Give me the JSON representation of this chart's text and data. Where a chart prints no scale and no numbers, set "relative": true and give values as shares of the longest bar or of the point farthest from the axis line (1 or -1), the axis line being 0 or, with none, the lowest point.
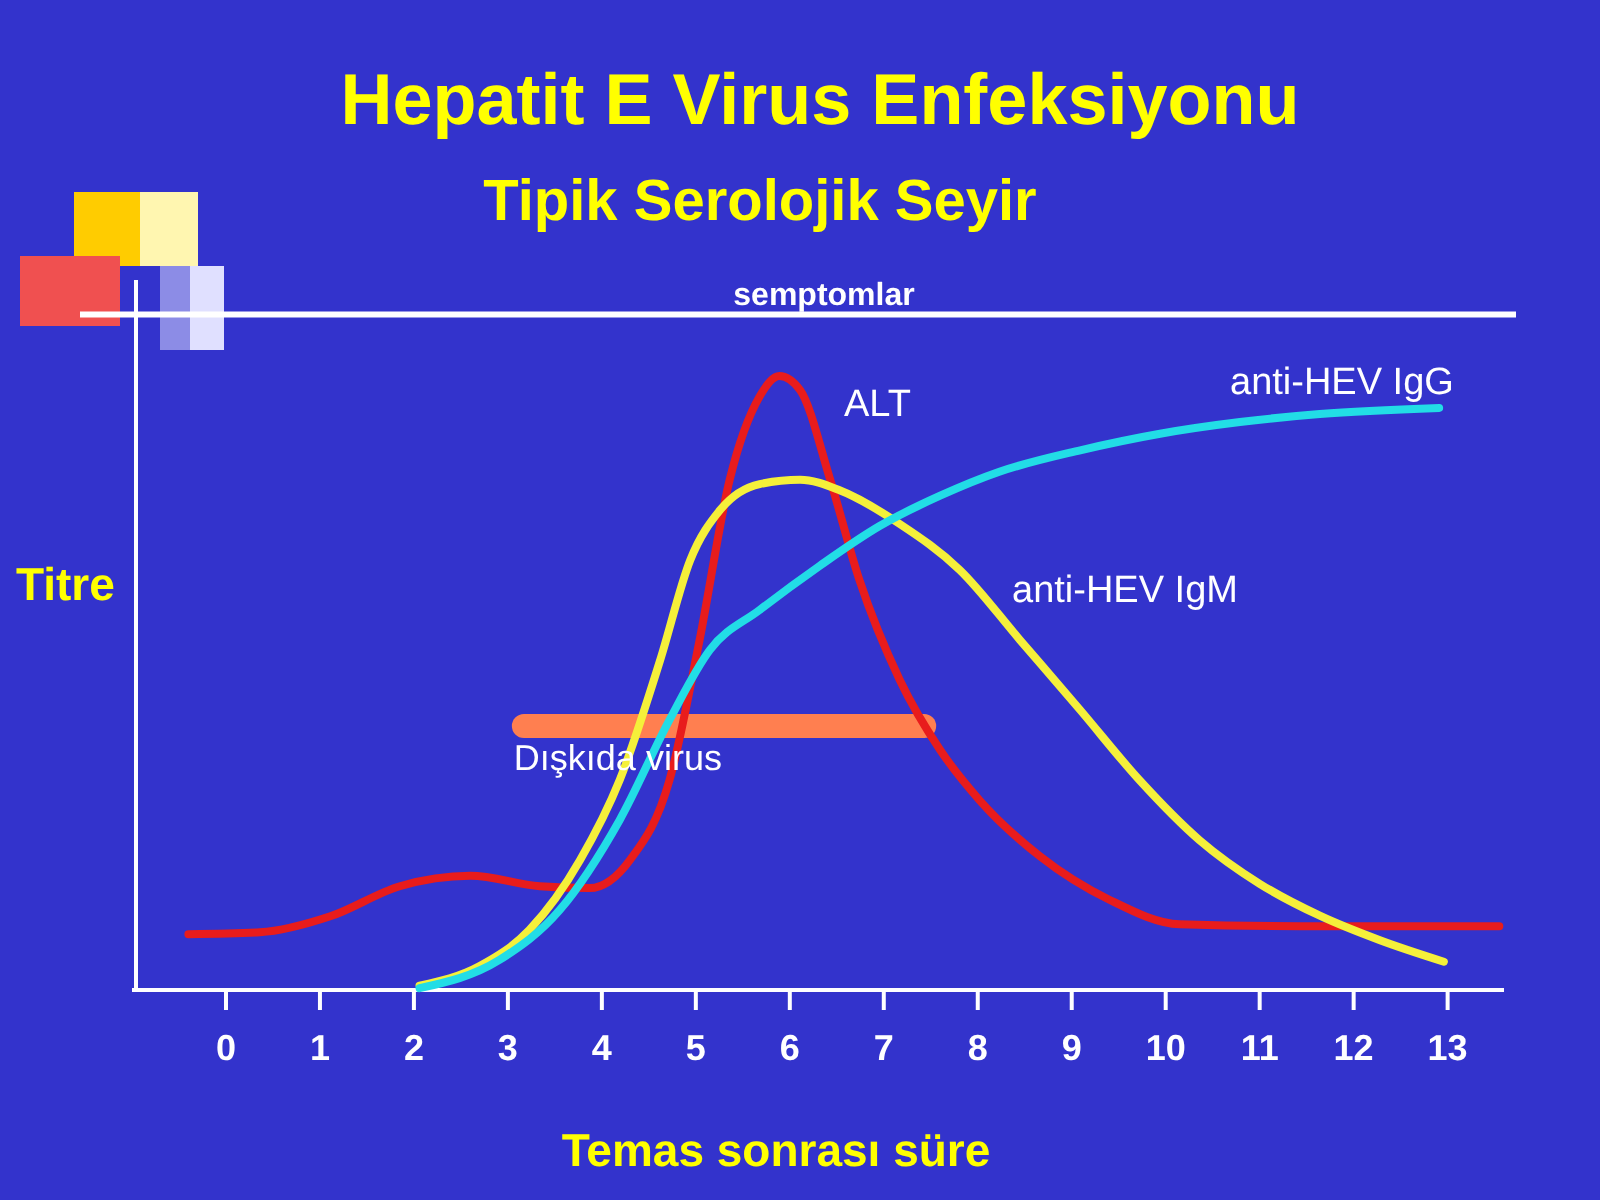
{
  "chart_data": {
    "type": "line",
    "title": "Hepatit E Virus Enfeksiyonu",
    "subtitle": "Tipik Serolojik Seyir",
    "xlabel": "Temas sonrası süre",
    "ylabel": "Titre",
    "relative": true,
    "legend": false,
    "marker": "none",
    "line_style": "solid",
    "annotations": [
      {
        "text": "Dışkıda virus",
        "x": 3.17,
        "y": 0.43
      }
    ],
    "xlim": [
      -1,
      13.6
    ],
    "xticks": [
      0,
      1,
      2,
      3,
      4,
      5,
      6,
      7,
      8,
      9,
      10,
      11,
      12,
      13
    ],
    "ref_lines": [
      {
        "axis": "y",
        "value": 1.1,
        "label": "semptomlar",
        "color": "#ffffff"
      }
    ],
    "series": [
      {
        "color": "#ff7f50",
        "x": [
          3.17,
          7.43
        ],
        "values": [
          0.43,
          0.43
        ]
      },
      {
        "name": "ALT",
        "color": "#e81c1c",
        "x": [
          -0.4,
          0.36,
          1.11,
          1.85,
          2.6,
          3.34,
          3.87,
          4.3,
          4.72,
          5.04,
          5.36,
          5.68,
          5.89,
          6.11,
          6.43,
          6.74,
          7.17,
          7.6,
          8.02,
          8.66,
          9.4,
          10.15,
          11.43,
          13.55
        ],
        "values": [
          0.091,
          0.094,
          0.12,
          0.169,
          0.186,
          0.169,
          0.166,
          0.212,
          0.342,
          0.57,
          0.831,
          0.967,
          1,
          0.977,
          0.831,
          0.668,
          0.505,
          0.391,
          0.309,
          0.218,
          0.147,
          0.107,
          0.104,
          0.104
        ]
      },
      {
        "name": "anti-HEV IgM",
        "color": "#f5f03a",
        "x": [
          2.06,
          2.7,
          3.23,
          3.77,
          4.19,
          4.62,
          4.94,
          5.26,
          5.68,
          6.11,
          6.53,
          7.17,
          7.81,
          8.45,
          9.09,
          9.72,
          10.36,
          11,
          11.64,
          12.28,
          12.96
        ],
        "values": [
          0.007,
          0.039,
          0.098,
          0.212,
          0.342,
          0.537,
          0.7,
          0.782,
          0.824,
          0.831,
          0.814,
          0.759,
          0.684,
          0.57,
          0.456,
          0.342,
          0.244,
          0.173,
          0.121,
          0.081,
          0.046
        ]
      },
      {
        "name": "anti-HEV IgG",
        "color": "#22dde6",
        "x": [
          2.06,
          2.91,
          3.55,
          4.19,
          4.72,
          5.15,
          5.68,
          6.32,
          6.96,
          7.6,
          8.23,
          9.09,
          9.94,
          10.79,
          11.64,
          12.91
        ],
        "values": [
          0.003,
          0.049,
          0.13,
          0.277,
          0.44,
          0.554,
          0.619,
          0.691,
          0.756,
          0.805,
          0.844,
          0.879,
          0.906,
          0.925,
          0.938,
          0.948
        ]
      }
    ]
  }
}
